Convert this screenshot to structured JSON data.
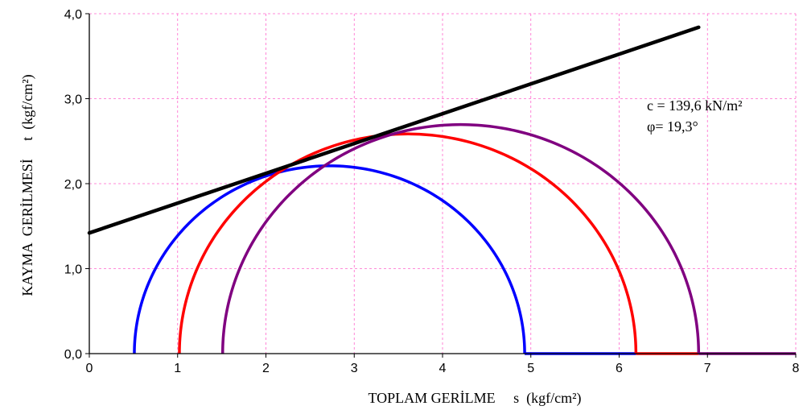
{
  "chart_data": {
    "type": "line",
    "title": "",
    "xlabel": "TOPLAM GERİLME     s  (kgf/cm²)",
    "ylabel": "KAYMA  GERİLMESİ     t  (kgf/cm²)",
    "xlim": [
      0,
      8
    ],
    "ylim": [
      0,
      4
    ],
    "x_ticks": [
      "0",
      "1",
      "2",
      "3",
      "4",
      "5",
      "6",
      "7",
      "8"
    ],
    "y_ticks": [
      "0,0",
      "1,0",
      "2,0",
      "3,0",
      "4,0"
    ],
    "grid": true,
    "mohr_circles": [
      {
        "sigma3": 0.51,
        "sigma1": 4.93,
        "color": "#0000ff"
      },
      {
        "sigma3": 1.02,
        "sigma1": 6.19,
        "color": "#ff0000"
      },
      {
        "sigma3": 1.51,
        "sigma1": 6.9,
        "color": "#800080"
      }
    ],
    "baseline": {
      "x_end": 8.0,
      "segments": [
        {
          "from": 4.93,
          "to": 6.19,
          "color": "#0000ff"
        },
        {
          "from": 6.19,
          "to": 6.9,
          "color": "#ff0000"
        },
        {
          "from": 6.9,
          "to": 8.0,
          "color": "#800080"
        }
      ]
    },
    "envelope": {
      "x": [
        0,
        6.9
      ],
      "y": [
        1.42,
        3.84
      ],
      "color": "#000000"
    },
    "annotations": [
      "c = 139,6 kN/m²",
      "φ= 19,3°"
    ]
  }
}
